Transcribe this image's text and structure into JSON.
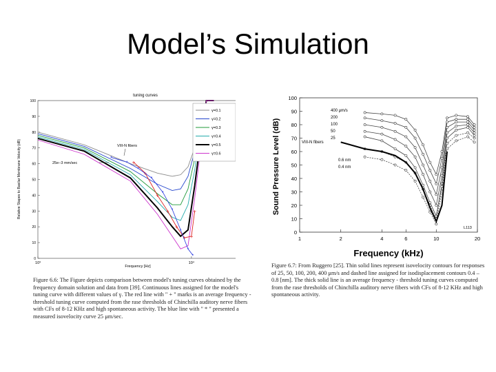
{
  "slide": {
    "title": "Model’s Simulation"
  },
  "left_figure": {
    "caption": "Figure 6.6: The Figure depicts comparison between model's tuning curves obtained by the frequency domain solution and data from [39]. Continuous lines assigned for the model's tuning curve with different values of γ. The red line with \" + \" marks is an average frequency - threshold tuning curve computed from the rase thresholds of Chinchilla auditory nerve fibers with CFs of 8-12 KHz and high spontaneous activity. The blue line with \" * \" presented a measured isovelocity curve 25 μm/sec.",
    "annotations": [
      "VIII-N fibers",
      "25e−3 mm/sec"
    ],
    "colors": {
      "gamma_0.1": "#8a8a8a",
      "gamma_0.2": "#2244cc",
      "gamma_0.3": "#1f9a3a",
      "gamma_0.4": "#22aaaa",
      "gamma_0.5": "#000000",
      "gamma_0.6": "#cc33cc",
      "fiber_avg": "#dd2222",
      "isovelocity": "#2233dd"
    }
  },
  "right_figure": {
    "caption": "Figure 6.7: From Ruggero [25]. Thin solid lines represent isovelocity contours for responses of 25, 50, 100, 200, 400 μm/s and dashed line assigned for isodisplacement contours 0.4 – 0.8 [nm]. The thick solid line is an average frequency - threshold tuning curves computed from the rase thresholds of Chinchilla auditory nerve fibers with CFs of 8-12 KHz and high spontaneous activity.",
    "annotations": [
      "VIII-N fibers",
      "0.6 nm",
      "0.4 nm",
      "L113"
    ]
  },
  "chart_data": [
    {
      "type": "line",
      "title": "tuning curves",
      "xlabel": "Frequency [Hz]",
      "ylabel": "Relative Stapes to Basilar Membrane Velocity (dB)",
      "x_scale": "log",
      "xlim": [
        1000,
        20000
      ],
      "ylim": [
        0,
        100
      ],
      "x_tick_labels": [
        "10³",
        "10⁴"
      ],
      "y_ticks": [
        0,
        10,
        20,
        30,
        40,
        50,
        60,
        70,
        80,
        90,
        100
      ],
      "legend_position": "top-right",
      "grid": false,
      "series": [
        {
          "name": "γ=0.1",
          "x": [
            1000,
            2000,
            4000,
            6000,
            7500,
            8500,
            9500,
            10500,
            11500,
            12500,
            14000
          ],
          "values": [
            80,
            72,
            60,
            54,
            52,
            53,
            58,
            70,
            86,
            100,
            100
          ]
        },
        {
          "name": "γ=0.2",
          "x": [
            1000,
            2000,
            4000,
            6000,
            7500,
            8500,
            9500,
            10500,
            11500,
            12500,
            14000
          ],
          "values": [
            79,
            71,
            57,
            47,
            43,
            44,
            52,
            68,
            88,
            100,
            100
          ]
        },
        {
          "name": "γ=0.3",
          "x": [
            1000,
            2000,
            4000,
            6000,
            7500,
            8500,
            9500,
            10500,
            11500,
            12500,
            14000
          ],
          "values": [
            78,
            70,
            55,
            41,
            34,
            34,
            44,
            63,
            85,
            100,
            100
          ]
        },
        {
          "name": "γ=0.4",
          "x": [
            1000,
            2000,
            4000,
            6000,
            7500,
            8500,
            9500,
            10500,
            11500,
            12500,
            14000
          ],
          "values": [
            77,
            69,
            53,
            36,
            26,
            24,
            34,
            56,
            82,
            100,
            100
          ]
        },
        {
          "name": "γ=0.5",
          "x": [
            1000,
            2000,
            4000,
            6000,
            7500,
            8500,
            9500,
            10500,
            11500,
            12500,
            14000
          ],
          "values": [
            76,
            68,
            51,
            32,
            20,
            14,
            18,
            46,
            76,
            100,
            100
          ]
        },
        {
          "name": "γ=0.6",
          "x": [
            1000,
            2000,
            4000,
            6000,
            7500,
            8500,
            9500,
            10500,
            11500,
            12500,
            14000
          ],
          "values": [
            75,
            66,
            49,
            28,
            14,
            6,
            8,
            38,
            70,
            100,
            100
          ]
        }
      ],
      "fiber_average": {
        "x": [
          4200,
          5000,
          6000,
          7000,
          8000,
          9000,
          10000,
          10500
        ],
        "values": [
          61,
          54,
          40,
          30,
          20,
          13,
          14,
          30
        ]
      },
      "isovelocity": {
        "x": [
          3000,
          3800,
          4500,
          5500,
          6500,
          7500,
          8500,
          9500,
          10200
        ],
        "values": [
          64,
          61,
          57,
          51,
          42,
          31,
          18,
          6,
          2
        ]
      }
    },
    {
      "type": "line",
      "title": "",
      "xlabel": "Frequency (kHz)",
      "ylabel": "Sound Pressure Level (dB)",
      "x_scale": "log",
      "xlim": [
        1,
        20
      ],
      "ylim": [
        0,
        100
      ],
      "x_ticks": [
        1,
        2,
        4,
        6,
        10,
        20
      ],
      "y_ticks": [
        0,
        10,
        20,
        30,
        40,
        50,
        60,
        70,
        80,
        90,
        100
      ],
      "legend_labels": [
        "400 μm/s",
        "200",
        "100",
        "50",
        "25"
      ],
      "grid": false,
      "series": [
        {
          "name": "400 μm/s",
          "x": [
            3,
            4,
            5,
            6,
            7,
            8,
            9,
            10,
            11,
            12,
            14,
            17,
            19
          ],
          "values": [
            89,
            88,
            87,
            84,
            76,
            65,
            52,
            43,
            60,
            85,
            87,
            86,
            80
          ]
        },
        {
          "name": "200",
          "x": [
            3,
            4,
            5,
            6,
            7,
            8,
            9,
            10,
            11,
            12,
            14,
            17,
            19
          ],
          "values": [
            85,
            83,
            81,
            78,
            70,
            58,
            46,
            36,
            55,
            82,
            84,
            84,
            78
          ]
        },
        {
          "name": "100",
          "x": [
            3,
            4,
            5,
            6,
            7,
            8,
            9,
            10,
            11,
            12,
            14,
            17,
            19
          ],
          "values": [
            80,
            78,
            75,
            71,
            63,
            50,
            38,
            28,
            48,
            78,
            82,
            82,
            76
          ]
        },
        {
          "name": "50",
          "x": [
            3,
            4,
            5,
            6,
            7,
            8,
            9,
            10,
            11,
            12,
            14,
            17,
            19
          ],
          "values": [
            75,
            73,
            69,
            64,
            56,
            43,
            30,
            20,
            42,
            74,
            79,
            80,
            74
          ]
        },
        {
          "name": "25",
          "x": [
            3,
            4,
            5,
            6,
            7,
            8,
            9,
            10,
            11,
            12,
            14,
            17,
            19
          ],
          "values": [
            71,
            68,
            62,
            57,
            48,
            35,
            22,
            12,
            36,
            70,
            76,
            78,
            72
          ]
        },
        {
          "name": "0.6 nm",
          "x": [
            3,
            4,
            5,
            6,
            7,
            8,
            9,
            10,
            11,
            12,
            14,
            17,
            19
          ],
          "values": [
            62,
            60,
            56,
            52,
            44,
            32,
            20,
            10,
            34,
            66,
            72,
            74,
            70
          ]
        },
        {
          "name": "0.4 nm",
          "x": [
            3,
            4,
            5,
            6,
            7,
            8,
            9,
            10,
            11,
            12,
            14,
            17,
            19
          ],
          "values": [
            56,
            54,
            50,
            46,
            38,
            26,
            15,
            6,
            30,
            62,
            68,
            71,
            67
          ]
        },
        {
          "name": "VIII-N fibers",
          "x": [
            2,
            3,
            4,
            5,
            6,
            7,
            8,
            9,
            10,
            11,
            12
          ],
          "values": [
            67,
            62,
            60,
            57,
            52,
            44,
            32,
            18,
            8,
            20,
            60
          ]
        }
      ]
    }
  ]
}
